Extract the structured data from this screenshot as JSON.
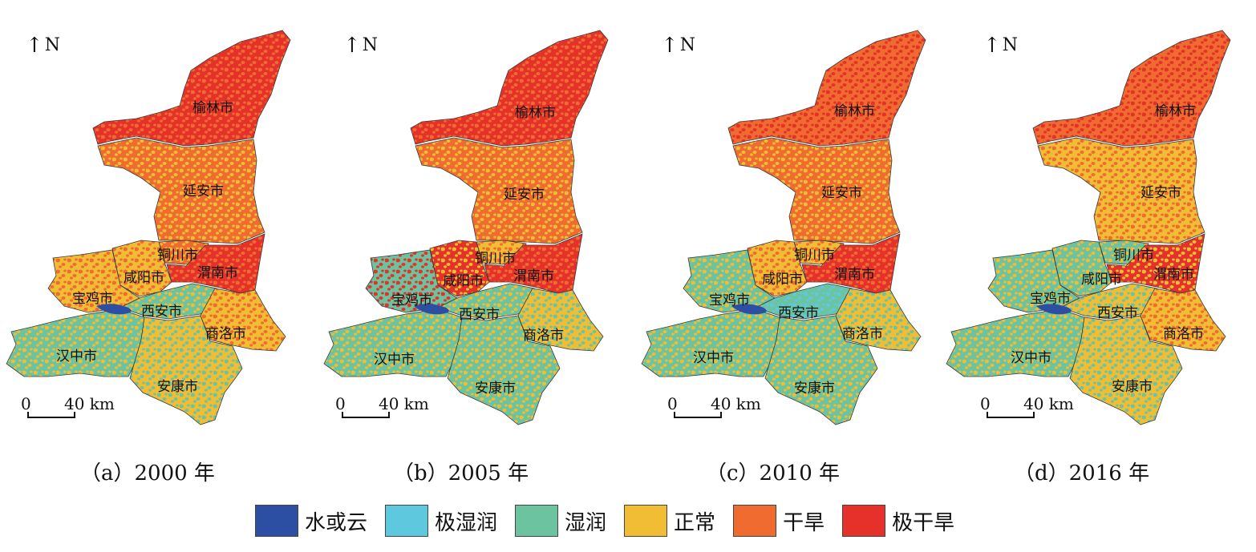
{
  "panels": [
    {
      "caption": "（a）2000 年",
      "north": "N",
      "scale": {
        "zero": "0",
        "label": "40 km"
      },
      "cities": [
        "榆林市",
        "延安市",
        "铜川市",
        "咸阳市",
        "渭南市",
        "宝鸡市",
        "西安市",
        "商洛市",
        "汉中市",
        "安康市"
      ],
      "dominant_classes": [
        "干旱",
        "极干旱",
        "正常",
        "湿润"
      ]
    },
    {
      "caption": "（b）2005 年",
      "north": "N",
      "scale": {
        "zero": "0",
        "label": "40 km"
      },
      "cities": [
        "榆林市",
        "延安市",
        "铜川市",
        "咸阳市",
        "渭南市",
        "宝鸡市",
        "西安市",
        "商洛市",
        "汉中市",
        "安康市"
      ],
      "dominant_classes": [
        "极干旱",
        "干旱",
        "正常",
        "湿润"
      ]
    },
    {
      "caption": "（c）2010 年",
      "north": "N",
      "scale": {
        "zero": "0",
        "label": "40 km"
      },
      "cities": [
        "榆林市",
        "延安市",
        "铜川市",
        "咸阳市",
        "渭南市",
        "宝鸡市",
        "西安市",
        "商洛市",
        "汉中市",
        "安康市"
      ],
      "dominant_classes": [
        "干旱",
        "极干旱",
        "正常",
        "湿润"
      ]
    },
    {
      "caption": "（d）2016 年",
      "north": "N",
      "scale": {
        "zero": "0",
        "label": "40 km"
      },
      "cities": [
        "榆林市",
        "延安市",
        "铜川市",
        "咸阳市",
        "渭南市",
        "宝鸡市",
        "西安市",
        "商洛市",
        "汉中市",
        "安康市"
      ],
      "dominant_classes": [
        "干旱",
        "正常",
        "极干旱",
        "湿润"
      ]
    }
  ],
  "legend": [
    {
      "label": "水或云",
      "color": "#2d4fa3"
    },
    {
      "label": "极湿润",
      "color": "#5ec8df"
    },
    {
      "label": "湿润",
      "color": "#6cc3a0"
    },
    {
      "label": "正常",
      "color": "#f0bd35"
    },
    {
      "label": "干旱",
      "color": "#ef6b30"
    },
    {
      "label": "极干旱",
      "color": "#e5312a"
    }
  ]
}
